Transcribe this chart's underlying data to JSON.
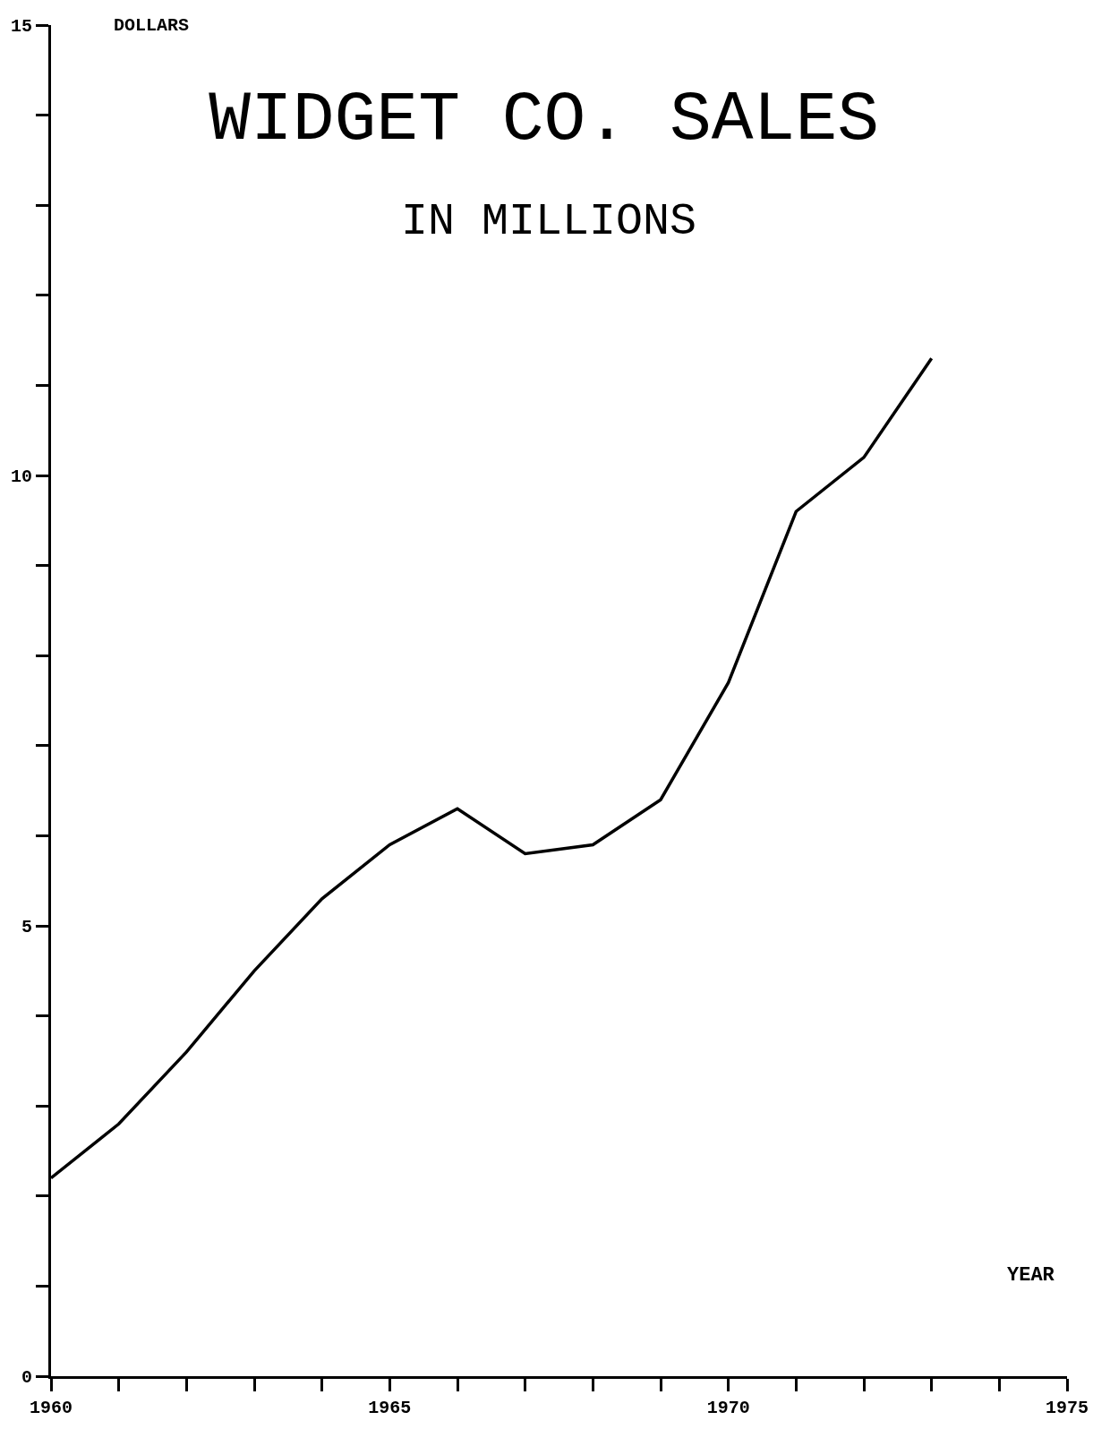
{
  "chart_data": {
    "type": "line",
    "title": "WIDGET CO. SALES",
    "subtitle": "IN MILLIONS",
    "xlabel": "YEAR",
    "ylabel": "DOLLARS",
    "x": [
      1960,
      1961,
      1962,
      1963,
      1964,
      1965,
      1966,
      1967,
      1968,
      1969,
      1970,
      1971,
      1972,
      1973
    ],
    "values": [
      2.2,
      2.8,
      3.6,
      4.5,
      5.3,
      5.9,
      6.3,
      5.8,
      5.9,
      6.4,
      7.7,
      9.6,
      10.2,
      11.3
    ],
    "color": "#000000",
    "marker": "none",
    "line_style": "solid",
    "xlim": [
      1960,
      1975
    ],
    "ylim": [
      0,
      15
    ],
    "xticks": [
      {
        "value": 1960,
        "label": "1960"
      },
      {
        "value": 1961,
        "label": null
      },
      {
        "value": 1962,
        "label": null
      },
      {
        "value": 1963,
        "label": null
      },
      {
        "value": 1964,
        "label": null
      },
      {
        "value": 1965,
        "label": "1965"
      },
      {
        "value": 1966,
        "label": null
      },
      {
        "value": 1967,
        "label": null
      },
      {
        "value": 1968,
        "label": null
      },
      {
        "value": 1969,
        "label": null
      },
      {
        "value": 1970,
        "label": "1970"
      },
      {
        "value": 1971,
        "label": null
      },
      {
        "value": 1972,
        "label": null
      },
      {
        "value": 1973,
        "label": null
      },
      {
        "value": 1974,
        "label": null
      },
      {
        "value": 1975,
        "label": "1975"
      }
    ],
    "yticks": [
      0,
      {
        "value": 1,
        "label": null
      },
      {
        "value": 2,
        "label": null
      },
      {
        "value": 3,
        "label": null
      },
      {
        "value": 4,
        "label": null
      },
      5,
      {
        "value": 6,
        "label": null
      },
      {
        "value": 7,
        "label": null
      },
      {
        "value": 8,
        "label": null
      },
      {
        "value": 9,
        "label": null
      },
      10,
      {
        "value": 11,
        "label": null
      },
      {
        "value": 12,
        "label": null
      },
      {
        "value": 13,
        "label": null
      },
      {
        "value": 14,
        "label": null
      },
      15
    ]
  }
}
